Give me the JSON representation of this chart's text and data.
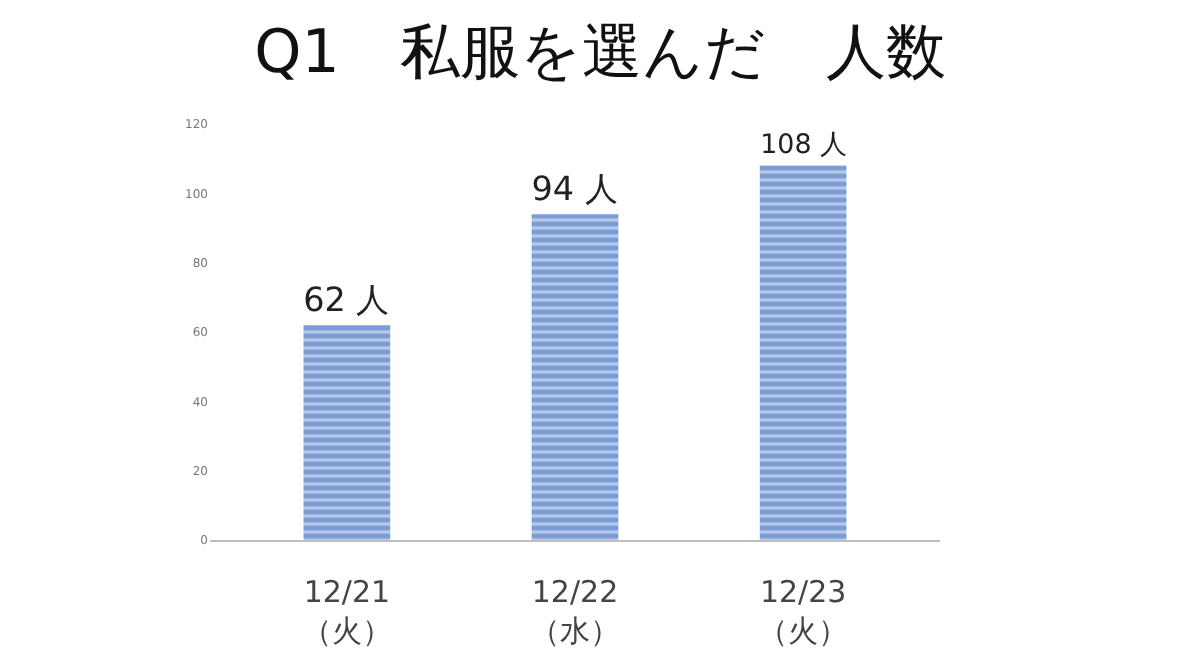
{
  "chart_data": {
    "type": "bar",
    "title": "Q1　私服を選んだ　人数",
    "categories": [
      "12/21\n（火）",
      "12/22\n（水）",
      "12/23\n（火）"
    ],
    "values": [
      62,
      94,
      108
    ],
    "value_labels": [
      "62 人",
      "94 人",
      "108 人"
    ],
    "color": "#4472c4",
    "ylim": [
      0,
      120
    ],
    "yticks": [
      0,
      20,
      40,
      60,
      80,
      100,
      120
    ]
  }
}
